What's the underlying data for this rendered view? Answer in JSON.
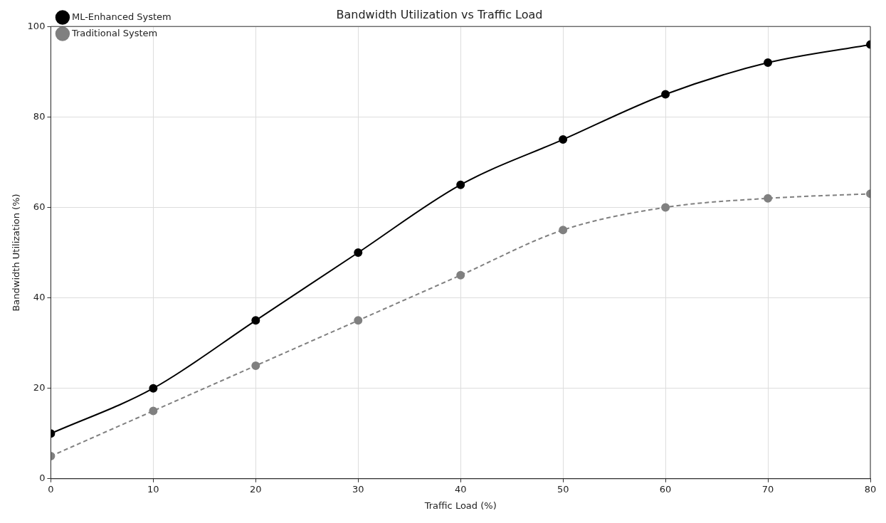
{
  "chart_data": {
    "type": "line",
    "title": "Bandwidth Utilization vs Traffic Load",
    "xlabel": "Traffic Load (%)",
    "ylabel": "Bandwidth Utilization (%)",
    "x": [
      0,
      10,
      20,
      30,
      40,
      50,
      60,
      70,
      80
    ],
    "series": [
      {
        "name": "ML-Enhanced System",
        "color": "#000000",
        "values": [
          10,
          20,
          35,
          50,
          65,
          75,
          85,
          92,
          96
        ],
        "line_style": "solid"
      },
      {
        "name": "Traditional System",
        "color": "#808080",
        "values": [
          5,
          15,
          25,
          35,
          45,
          55,
          60,
          62,
          63
        ],
        "line_style": "dashed"
      }
    ],
    "xlim": [
      0,
      80
    ],
    "xticks": [
      0,
      10,
      20,
      30,
      40,
      50,
      60,
      70,
      80
    ],
    "ylim": [
      0,
      100
    ],
    "yticks": [
      0,
      20,
      40,
      60,
      80,
      100
    ],
    "grid": true,
    "legend": "top left",
    "marker": "circle"
  }
}
